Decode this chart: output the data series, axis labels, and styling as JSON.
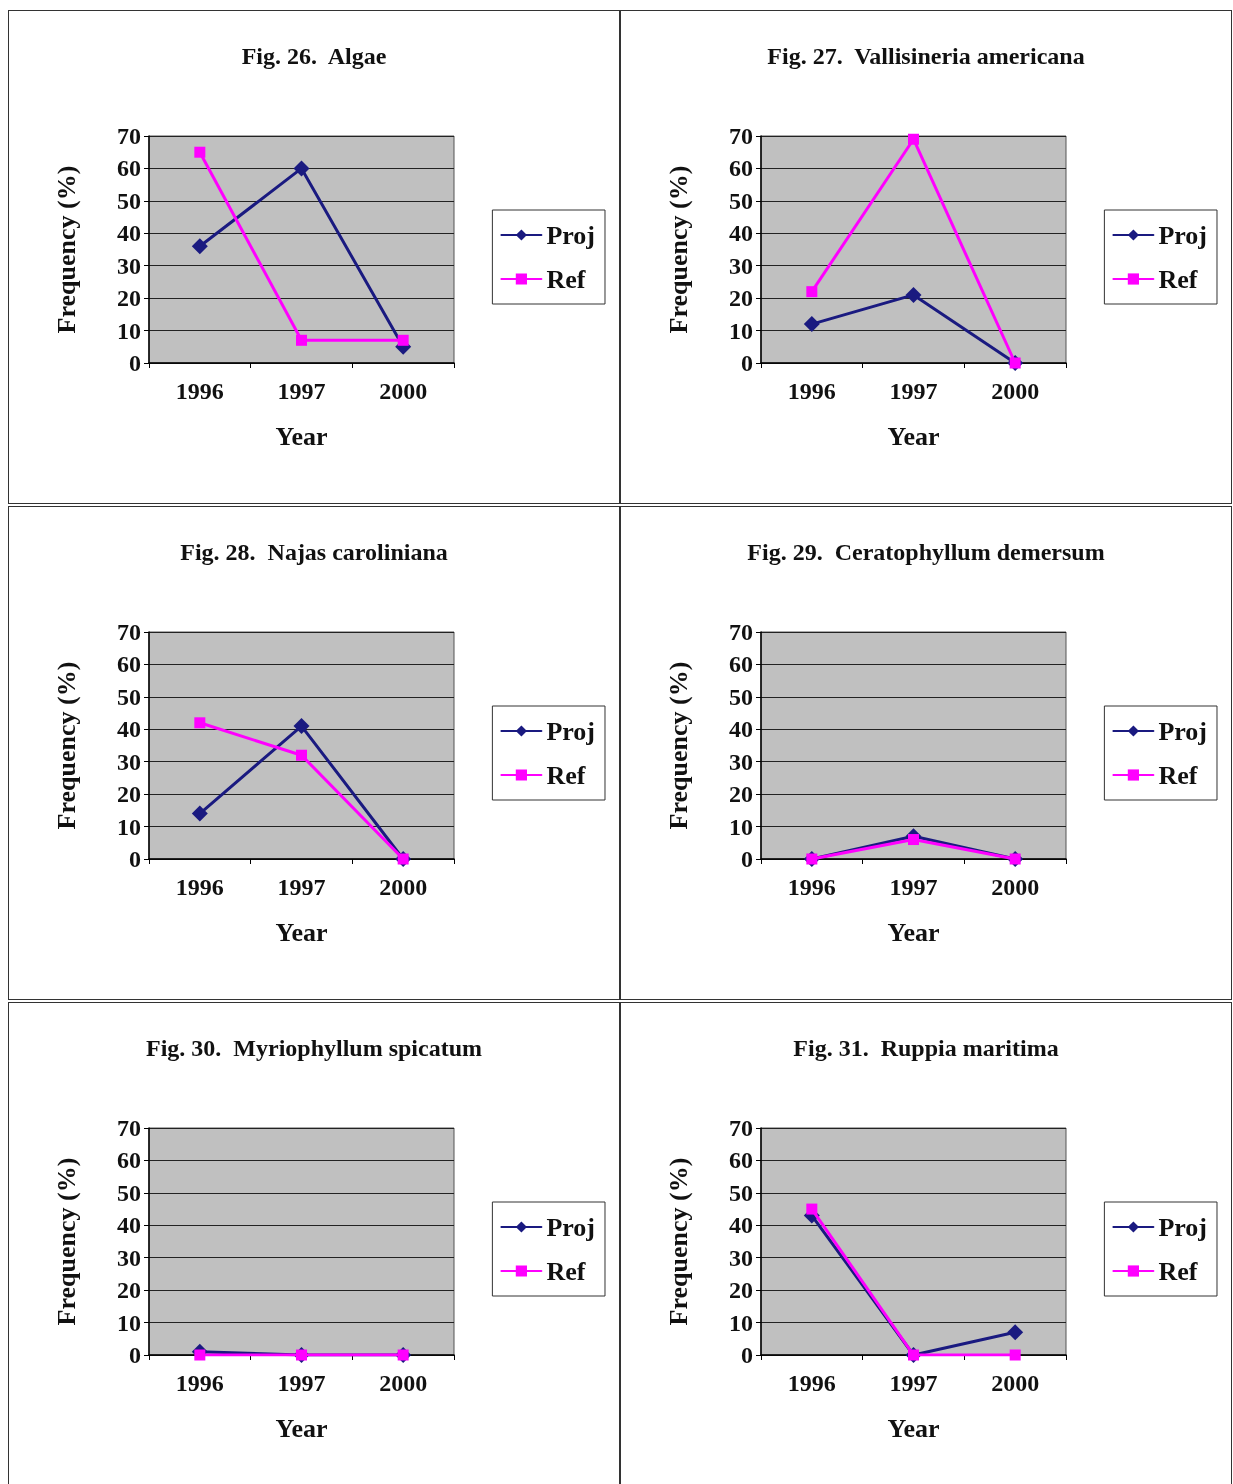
{
  "chart_data": [
    {
      "type": "line",
      "title": "Fig. 26.  Algae",
      "xlabel": "Year",
      "ylabel": "Frequency (%)",
      "categories": [
        "1996",
        "1997",
        "2000"
      ],
      "ylim": [
        0,
        70
      ],
      "yticks": [
        0,
        10,
        20,
        30,
        40,
        50,
        60,
        70
      ],
      "grid": "y",
      "legend": "right",
      "series": [
        {
          "name": "Proj",
          "color": "#1a1a80",
          "marker": "diamond",
          "values": [
            36,
            60,
            5
          ]
        },
        {
          "name": "Ref",
          "color": "#ff00ff",
          "marker": "square",
          "values": [
            65,
            7,
            7
          ]
        }
      ]
    },
    {
      "type": "line",
      "title": "Fig. 27.  Vallisineria americana",
      "xlabel": "Year",
      "ylabel": "Frequency (%)",
      "categories": [
        "1996",
        "1997",
        "2000"
      ],
      "ylim": [
        0,
        70
      ],
      "yticks": [
        0,
        10,
        20,
        30,
        40,
        50,
        60,
        70
      ],
      "grid": "y",
      "legend": "right",
      "series": [
        {
          "name": "Proj",
          "color": "#1a1a80",
          "marker": "diamond",
          "values": [
            12,
            21,
            0
          ]
        },
        {
          "name": "Ref",
          "color": "#ff00ff",
          "marker": "square",
          "values": [
            22,
            69,
            0
          ]
        }
      ]
    },
    {
      "type": "line",
      "title": "Fig. 28.  Najas caroliniana",
      "xlabel": "Year",
      "ylabel": "Frequency (%)",
      "categories": [
        "1996",
        "1997",
        "2000"
      ],
      "ylim": [
        0,
        70
      ],
      "yticks": [
        0,
        10,
        20,
        30,
        40,
        50,
        60,
        70
      ],
      "grid": "y",
      "legend": "right",
      "series": [
        {
          "name": "Proj",
          "color": "#1a1a80",
          "marker": "diamond",
          "values": [
            14,
            41,
            0
          ]
        },
        {
          "name": "Ref",
          "color": "#ff00ff",
          "marker": "square",
          "values": [
            42,
            32,
            0
          ]
        }
      ]
    },
    {
      "type": "line",
      "title": "Fig. 29.  Ceratophyllum demersum",
      "xlabel": "Year",
      "ylabel": "Frequency (%)",
      "categories": [
        "1996",
        "1997",
        "2000"
      ],
      "ylim": [
        0,
        70
      ],
      "yticks": [
        0,
        10,
        20,
        30,
        40,
        50,
        60,
        70
      ],
      "grid": "y",
      "legend": "right",
      "series": [
        {
          "name": "Proj",
          "color": "#1a1a80",
          "marker": "diamond",
          "values": [
            0,
            7,
            0
          ]
        },
        {
          "name": "Ref",
          "color": "#ff00ff",
          "marker": "square",
          "values": [
            0,
            6,
            0
          ]
        }
      ]
    },
    {
      "type": "line",
      "title": "Fig. 30.  Myriophyllum spicatum",
      "xlabel": "Year",
      "ylabel": "Frequency (%)",
      "categories": [
        "1996",
        "1997",
        "2000"
      ],
      "ylim": [
        0,
        70
      ],
      "yticks": [
        0,
        10,
        20,
        30,
        40,
        50,
        60,
        70
      ],
      "grid": "y",
      "legend": "right",
      "series": [
        {
          "name": "Proj",
          "color": "#1a1a80",
          "marker": "diamond",
          "values": [
            1,
            0,
            0
          ]
        },
        {
          "name": "Ref",
          "color": "#ff00ff",
          "marker": "square",
          "values": [
            0,
            0,
            0
          ]
        }
      ]
    },
    {
      "type": "line",
      "title": "Fig. 31.  Ruppia maritima",
      "xlabel": "Year",
      "ylabel": "Frequency (%)",
      "categories": [
        "1996",
        "1997",
        "2000"
      ],
      "ylim": [
        0,
        70
      ],
      "yticks": [
        0,
        10,
        20,
        30,
        40,
        50,
        60,
        70
      ],
      "grid": "y",
      "legend": "right",
      "series": [
        {
          "name": "Proj",
          "color": "#1a1a80",
          "marker": "diamond",
          "values": [
            43,
            0,
            7
          ]
        },
        {
          "name": "Ref",
          "color": "#ff00ff",
          "marker": "square",
          "values": [
            45,
            0,
            0
          ]
        }
      ]
    }
  ]
}
